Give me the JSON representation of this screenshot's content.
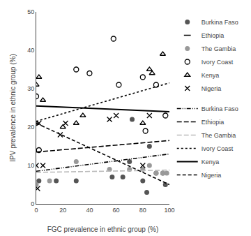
{
  "chart_data": {
    "type": "scatter",
    "xlabel": "FGC prevalence in ethnic group (%)",
    "ylabel": "IPV prevalence in ethnic group (%)",
    "xlim": [
      0,
      100
    ],
    "ylim": [
      0,
      50
    ],
    "xticks": [
      0,
      20,
      40,
      60,
      80,
      100
    ],
    "yticks": [
      0,
      10,
      20,
      30,
      40,
      50
    ],
    "grid": false,
    "legend": "right",
    "series": [
      {
        "name": "Burkina Faso",
        "type": "scatter",
        "marker": "filled-circle",
        "color": "#555555",
        "x": [
          0,
          2,
          15,
          30,
          57,
          65,
          70,
          72,
          80,
          83,
          85,
          90,
          95,
          97
        ],
        "values": [
          21,
          6,
          6,
          6,
          7,
          7,
          11,
          22,
          6,
          3,
          15,
          8,
          8,
          5
        ]
      },
      {
        "name": "Ethiopia",
        "type": "scatter",
        "marker": "dash",
        "color": "#000000",
        "x": [],
        "values": []
      },
      {
        "name": "The Gambia",
        "type": "scatter",
        "marker": "filled-circle",
        "color": "#999999",
        "x": [
          0,
          10,
          30,
          55,
          70,
          80,
          85,
          90,
          95,
          98
        ],
        "values": [
          5,
          6,
          11,
          9,
          9,
          9,
          10,
          8,
          8,
          8
        ]
      },
      {
        "name": "Ivory Coast",
        "type": "scatter",
        "marker": "open-circle",
        "color": "#000000",
        "x": [
          0,
          2,
          30,
          40,
          58,
          62,
          80,
          82,
          90,
          97
        ],
        "values": [
          28,
          14,
          35,
          34,
          43,
          31,
          33,
          19,
          31,
          23
        ]
      },
      {
        "name": "Kenya",
        "type": "scatter",
        "marker": "open-triangle",
        "color": "#000000",
        "x": [
          0,
          2,
          5,
          20,
          30,
          35,
          80,
          85,
          87,
          95
        ],
        "values": [
          31,
          33,
          27,
          20,
          21,
          23,
          21,
          35,
          34,
          39
        ]
      },
      {
        "name": "Nigeria",
        "type": "scatter",
        "marker": "x",
        "color": "#000000",
        "x": [
          0,
          1,
          2,
          5,
          18,
          22,
          55,
          60,
          80,
          85
        ],
        "values": [
          10,
          4,
          21,
          10,
          18,
          21,
          22,
          23,
          10,
          23
        ]
      },
      {
        "name": "Burkina Faso",
        "type": "line",
        "line_style": "dash-dot-dot",
        "color": "#000000",
        "x": [
          0,
          100
        ],
        "values": [
          8.5,
          13.0
        ]
      },
      {
        "name": "Ethiopia",
        "type": "line",
        "line_style": "long-dashed",
        "color": "#000000",
        "x": [
          0,
          100
        ],
        "values": [
          13.5,
          16.5
        ]
      },
      {
        "name": "The Gambia",
        "type": "line",
        "line_style": "long-dashed",
        "color": "#bbbbbb",
        "x": [
          0,
          100
        ],
        "values": [
          8.2,
          8.8
        ]
      },
      {
        "name": "Ivory Coast",
        "type": "line",
        "line_style": "dotted",
        "color": "#000000",
        "x": [
          0,
          100
        ],
        "values": [
          21.5,
          31.5
        ]
      },
      {
        "name": "Kenya",
        "type": "line",
        "line_style": "solid",
        "color": "#000000",
        "x": [
          0,
          100
        ],
        "values": [
          25.5,
          24.0
        ]
      },
      {
        "name": "Nigeria",
        "type": "line",
        "line_style": "dashed",
        "color": "#000000",
        "x": [
          0,
          100
        ],
        "values": [
          21.0,
          5.0
        ]
      }
    ]
  }
}
